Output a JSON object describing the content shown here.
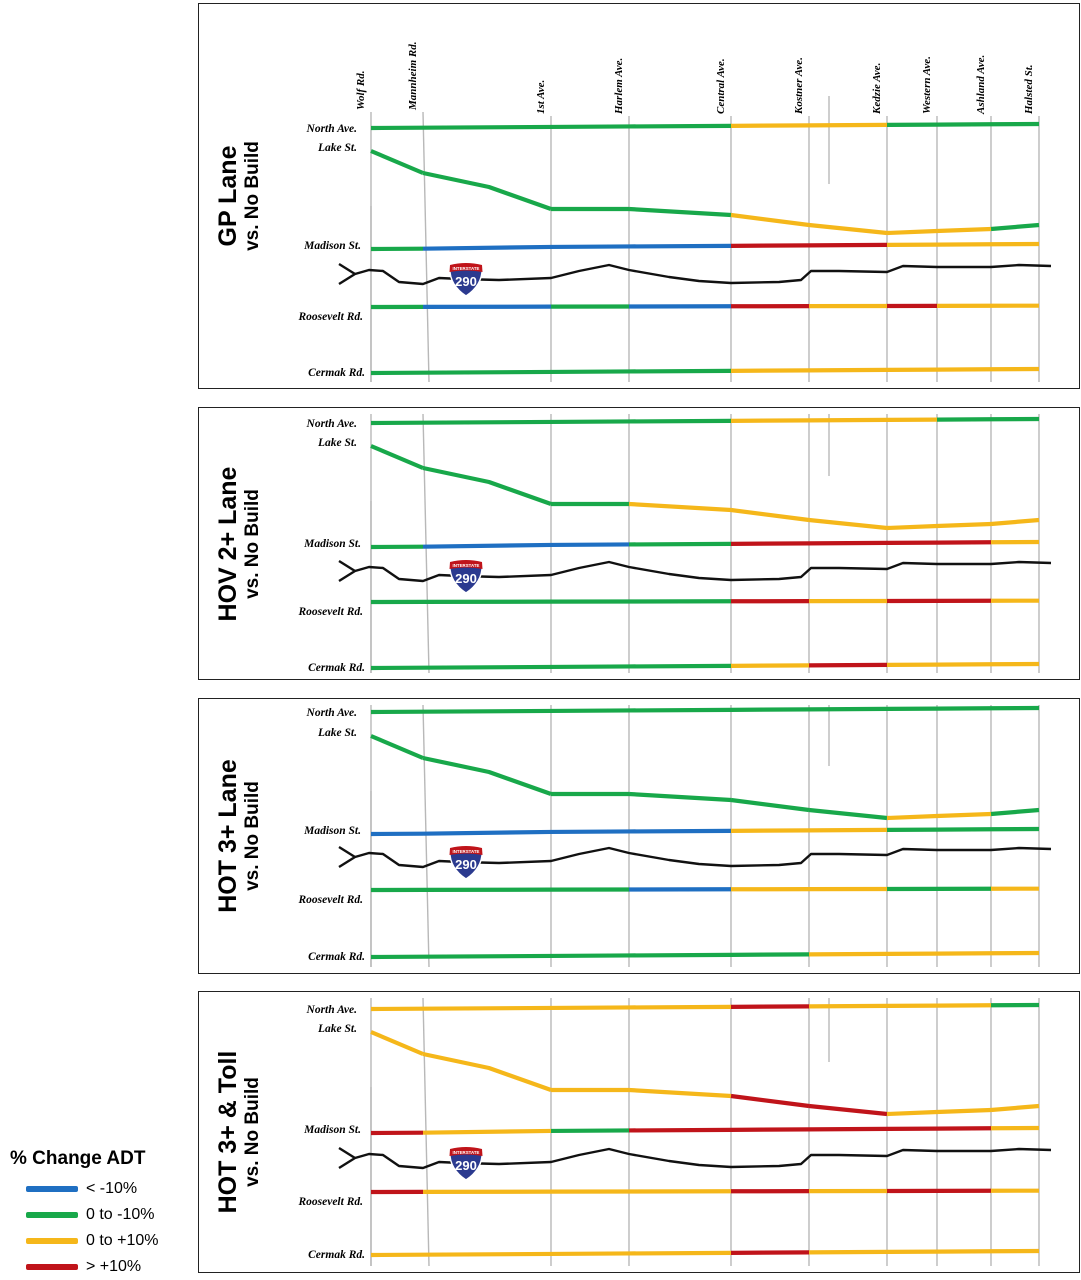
{
  "colors": {
    "lt_neg10": "#1f6fc2",
    "neg10_0": "#18a84a",
    "zero_pos10": "#f5b71a",
    "gt_pos10": "#c0141a",
    "freeway": "#111111",
    "grid": "#b8b8b8"
  },
  "streets_ns": [
    "Wolf Rd.",
    "Mannheim Rd.",
    "1st Ave.",
    "Harlem Ave.",
    "Central Ave.",
    "Kostner Ave.",
    "Kedzie Ave.",
    "Western Ave.",
    "Ashland Ave.",
    "Halsted St."
  ],
  "roads_ew": [
    "North Ave.",
    "Lake St.",
    "Madison St.",
    "Roosevelt Rd.",
    "Cermak Rd."
  ],
  "shield": {
    "number": "290",
    "band": "INTERSTATE",
    "icon": "interstate-shield-icon"
  },
  "panels": [
    {
      "title_line1": "GP Lane",
      "title_line2": "vs. No Build",
      "segments": {
        "north": [
          "neg10_0",
          "neg10_0",
          "neg10_0",
          "neg10_0",
          "zero_pos10",
          "zero_pos10",
          "neg10_0",
          "neg10_0",
          "neg10_0"
        ],
        "lake": [
          "neg10_0",
          "neg10_0",
          "neg10_0",
          "neg10_0",
          "zero_pos10",
          "zero_pos10",
          "zero_pos10",
          "zero_pos10",
          "neg10_0"
        ],
        "madison": [
          "neg10_0",
          "lt_neg10",
          "lt_neg10",
          "lt_neg10",
          "gt_pos10",
          "gt_pos10",
          "zero_pos10",
          "zero_pos10",
          "zero_pos10"
        ],
        "roosevelt": [
          "neg10_0",
          "lt_neg10",
          "neg10_0",
          "lt_neg10",
          "gt_pos10",
          "zero_pos10",
          "gt_pos10",
          "zero_pos10",
          "zero_pos10"
        ],
        "cermak": [
          "neg10_0",
          "neg10_0",
          "neg10_0",
          "neg10_0",
          "zero_pos10",
          "zero_pos10",
          "zero_pos10",
          "zero_pos10",
          "zero_pos10"
        ]
      }
    },
    {
      "title_line1": "HOV 2+ Lane",
      "title_line2": "vs. No Build",
      "segments": {
        "north": [
          "neg10_0",
          "neg10_0",
          "neg10_0",
          "neg10_0",
          "zero_pos10",
          "zero_pos10",
          "zero_pos10",
          "neg10_0",
          "neg10_0"
        ],
        "lake": [
          "neg10_0",
          "neg10_0",
          "neg10_0",
          "zero_pos10",
          "zero_pos10",
          "zero_pos10",
          "zero_pos10",
          "zero_pos10",
          "zero_pos10"
        ],
        "madison": [
          "neg10_0",
          "lt_neg10",
          "lt_neg10",
          "neg10_0",
          "gt_pos10",
          "gt_pos10",
          "gt_pos10",
          "gt_pos10",
          "zero_pos10"
        ],
        "roosevelt": [
          "neg10_0",
          "neg10_0",
          "neg10_0",
          "neg10_0",
          "gt_pos10",
          "zero_pos10",
          "gt_pos10",
          "gt_pos10",
          "zero_pos10"
        ],
        "cermak": [
          "neg10_0",
          "neg10_0",
          "neg10_0",
          "neg10_0",
          "zero_pos10",
          "gt_pos10",
          "zero_pos10",
          "zero_pos10",
          "zero_pos10"
        ]
      }
    },
    {
      "title_line1": "HOT 3+ Lane",
      "title_line2": "vs. No Build",
      "segments": {
        "north": [
          "neg10_0",
          "neg10_0",
          "neg10_0",
          "neg10_0",
          "neg10_0",
          "neg10_0",
          "neg10_0",
          "neg10_0",
          "neg10_0"
        ],
        "lake": [
          "neg10_0",
          "neg10_0",
          "neg10_0",
          "neg10_0",
          "neg10_0",
          "neg10_0",
          "zero_pos10",
          "zero_pos10",
          "neg10_0"
        ],
        "madison": [
          "lt_neg10",
          "lt_neg10",
          "lt_neg10",
          "lt_neg10",
          "zero_pos10",
          "zero_pos10",
          "neg10_0",
          "neg10_0",
          "neg10_0"
        ],
        "roosevelt": [
          "neg10_0",
          "neg10_0",
          "neg10_0",
          "lt_neg10",
          "zero_pos10",
          "zero_pos10",
          "neg10_0",
          "neg10_0",
          "zero_pos10"
        ],
        "cermak": [
          "neg10_0",
          "neg10_0",
          "neg10_0",
          "neg10_0",
          "neg10_0",
          "zero_pos10",
          "zero_pos10",
          "zero_pos10",
          "zero_pos10"
        ]
      }
    },
    {
      "title_line1": "HOT 3+ & Toll",
      "title_line2": "vs. No Build",
      "segments": {
        "north": [
          "zero_pos10",
          "zero_pos10",
          "zero_pos10",
          "zero_pos10",
          "gt_pos10",
          "zero_pos10",
          "zero_pos10",
          "zero_pos10",
          "neg10_0"
        ],
        "lake": [
          "zero_pos10",
          "zero_pos10",
          "zero_pos10",
          "zero_pos10",
          "gt_pos10",
          "gt_pos10",
          "zero_pos10",
          "zero_pos10",
          "zero_pos10"
        ],
        "madison": [
          "gt_pos10",
          "zero_pos10",
          "neg10_0",
          "gt_pos10",
          "gt_pos10",
          "gt_pos10",
          "gt_pos10",
          "gt_pos10",
          "zero_pos10"
        ],
        "roosevelt": [
          "gt_pos10",
          "zero_pos10",
          "zero_pos10",
          "zero_pos10",
          "gt_pos10",
          "zero_pos10",
          "gt_pos10",
          "gt_pos10",
          "zero_pos10"
        ],
        "cermak": [
          "zero_pos10",
          "zero_pos10",
          "zero_pos10",
          "zero_pos10",
          "gt_pos10",
          "zero_pos10",
          "zero_pos10",
          "zero_pos10",
          "zero_pos10"
        ]
      }
    }
  ],
  "legend": {
    "title": "% Change ADT",
    "items": [
      {
        "label": "< -10%",
        "color_key": "lt_neg10"
      },
      {
        "label": "0 to -10%",
        "color_key": "neg10_0"
      },
      {
        "label": "0 to +10%",
        "color_key": "zero_pos10"
      },
      {
        "label": "> +10%",
        "color_key": "gt_pos10"
      }
    ]
  }
}
